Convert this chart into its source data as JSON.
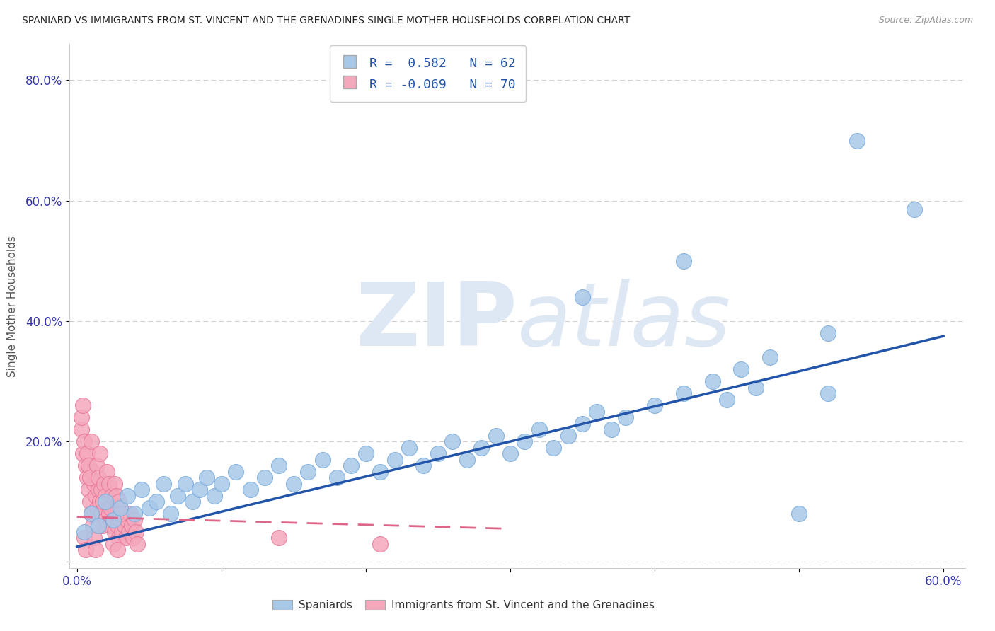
{
  "title": "SPANIARD VS IMMIGRANTS FROM ST. VINCENT AND THE GRENADINES SINGLE MOTHER HOUSEHOLDS CORRELATION CHART",
  "source": "Source: ZipAtlas.com",
  "ylabel": "Single Mother Households",
  "xlabel": "",
  "xlim": [
    -0.005,
    0.615
  ],
  "ylim": [
    -0.01,
    0.86
  ],
  "yticks": [
    0.0,
    0.2,
    0.4,
    0.6,
    0.8
  ],
  "ytick_labels": [
    "",
    "20.0%",
    "40.0%",
    "60.0%",
    "80.0%"
  ],
  "xticks": [
    0.0,
    0.1,
    0.2,
    0.3,
    0.4,
    0.5,
    0.6
  ],
  "xtick_labels": [
    "0.0%",
    "",
    "",
    "",
    "",
    "",
    "60.0%"
  ],
  "blue_color": "#a8c8e8",
  "pink_color": "#f4a8bc",
  "blue_edge_color": "#7aabdc",
  "pink_edge_color": "#e87898",
  "blue_line_color": "#2255aa",
  "pink_line_color": "#dd6688",
  "watermark_color": "#dde8f4",
  "background_color": "#ffffff",
  "grid_color": "#cccccc",
  "title_color": "#222222",
  "axis_label_color": "#555555",
  "tick_color": "#3333aa",
  "blue_trend_x": [
    0.0,
    0.6
  ],
  "blue_trend_y": [
    0.025,
    0.375
  ],
  "pink_trend_x": [
    0.0,
    0.3
  ],
  "pink_trend_y": [
    0.075,
    0.055
  ],
  "blue_points": [
    [
      0.005,
      0.05
    ],
    [
      0.01,
      0.08
    ],
    [
      0.015,
      0.06
    ],
    [
      0.02,
      0.1
    ],
    [
      0.025,
      0.07
    ],
    [
      0.03,
      0.09
    ],
    [
      0.035,
      0.11
    ],
    [
      0.04,
      0.08
    ],
    [
      0.045,
      0.12
    ],
    [
      0.05,
      0.09
    ],
    [
      0.055,
      0.1
    ],
    [
      0.06,
      0.13
    ],
    [
      0.065,
      0.08
    ],
    [
      0.07,
      0.11
    ],
    [
      0.075,
      0.13
    ],
    [
      0.08,
      0.1
    ],
    [
      0.085,
      0.12
    ],
    [
      0.09,
      0.14
    ],
    [
      0.095,
      0.11
    ],
    [
      0.1,
      0.13
    ],
    [
      0.11,
      0.15
    ],
    [
      0.12,
      0.12
    ],
    [
      0.13,
      0.14
    ],
    [
      0.14,
      0.16
    ],
    [
      0.15,
      0.13
    ],
    [
      0.16,
      0.15
    ],
    [
      0.17,
      0.17
    ],
    [
      0.18,
      0.14
    ],
    [
      0.19,
      0.16
    ],
    [
      0.2,
      0.18
    ],
    [
      0.21,
      0.15
    ],
    [
      0.22,
      0.17
    ],
    [
      0.23,
      0.19
    ],
    [
      0.24,
      0.16
    ],
    [
      0.25,
      0.18
    ],
    [
      0.26,
      0.2
    ],
    [
      0.27,
      0.17
    ],
    [
      0.28,
      0.19
    ],
    [
      0.29,
      0.21
    ],
    [
      0.3,
      0.18
    ],
    [
      0.31,
      0.2
    ],
    [
      0.32,
      0.22
    ],
    [
      0.33,
      0.19
    ],
    [
      0.34,
      0.21
    ],
    [
      0.35,
      0.23
    ],
    [
      0.36,
      0.25
    ],
    [
      0.37,
      0.22
    ],
    [
      0.38,
      0.24
    ],
    [
      0.4,
      0.26
    ],
    [
      0.42,
      0.28
    ],
    [
      0.44,
      0.3
    ],
    [
      0.46,
      0.32
    ],
    [
      0.48,
      0.34
    ],
    [
      0.5,
      0.08
    ],
    [
      0.52,
      0.28
    ],
    [
      0.45,
      0.27
    ],
    [
      0.47,
      0.29
    ],
    [
      0.54,
      0.7
    ],
    [
      0.58,
      0.585
    ],
    [
      0.42,
      0.5
    ],
    [
      0.35,
      0.44
    ],
    [
      0.52,
      0.38
    ]
  ],
  "pink_points": [
    [
      0.003,
      0.22
    ],
    [
      0.004,
      0.18
    ],
    [
      0.005,
      0.2
    ],
    [
      0.006,
      0.16
    ],
    [
      0.007,
      0.14
    ],
    [
      0.008,
      0.12
    ],
    [
      0.009,
      0.1
    ],
    [
      0.01,
      0.08
    ],
    [
      0.011,
      0.15
    ],
    [
      0.012,
      0.13
    ],
    [
      0.013,
      0.11
    ],
    [
      0.014,
      0.09
    ],
    [
      0.015,
      0.12
    ],
    [
      0.016,
      0.1
    ],
    [
      0.017,
      0.08
    ],
    [
      0.018,
      0.06
    ],
    [
      0.019,
      0.09
    ],
    [
      0.02,
      0.07
    ],
    [
      0.021,
      0.1
    ],
    [
      0.022,
      0.08
    ],
    [
      0.023,
      0.06
    ],
    [
      0.024,
      0.09
    ],
    [
      0.025,
      0.07
    ],
    [
      0.026,
      0.05
    ],
    [
      0.027,
      0.08
    ],
    [
      0.028,
      0.06
    ],
    [
      0.029,
      0.04
    ],
    [
      0.03,
      0.07
    ],
    [
      0.031,
      0.05
    ],
    [
      0.032,
      0.08
    ],
    [
      0.033,
      0.06
    ],
    [
      0.034,
      0.04
    ],
    [
      0.035,
      0.07
    ],
    [
      0.036,
      0.05
    ],
    [
      0.037,
      0.08
    ],
    [
      0.038,
      0.06
    ],
    [
      0.039,
      0.04
    ],
    [
      0.04,
      0.07
    ],
    [
      0.041,
      0.05
    ],
    [
      0.042,
      0.03
    ],
    [
      0.003,
      0.24
    ],
    [
      0.004,
      0.26
    ],
    [
      0.005,
      0.04
    ],
    [
      0.006,
      0.02
    ],
    [
      0.007,
      0.18
    ],
    [
      0.008,
      0.16
    ],
    [
      0.009,
      0.14
    ],
    [
      0.01,
      0.2
    ],
    [
      0.011,
      0.06
    ],
    [
      0.012,
      0.04
    ],
    [
      0.013,
      0.02
    ],
    [
      0.014,
      0.16
    ],
    [
      0.015,
      0.14
    ],
    [
      0.016,
      0.18
    ],
    [
      0.017,
      0.12
    ],
    [
      0.018,
      0.1
    ],
    [
      0.019,
      0.13
    ],
    [
      0.02,
      0.11
    ],
    [
      0.021,
      0.15
    ],
    [
      0.022,
      0.13
    ],
    [
      0.023,
      0.09
    ],
    [
      0.024,
      0.11
    ],
    [
      0.025,
      0.03
    ],
    [
      0.026,
      0.13
    ],
    [
      0.027,
      0.11
    ],
    [
      0.028,
      0.02
    ],
    [
      0.029,
      0.1
    ],
    [
      0.03,
      0.08
    ],
    [
      0.14,
      0.04
    ],
    [
      0.21,
      0.03
    ]
  ]
}
